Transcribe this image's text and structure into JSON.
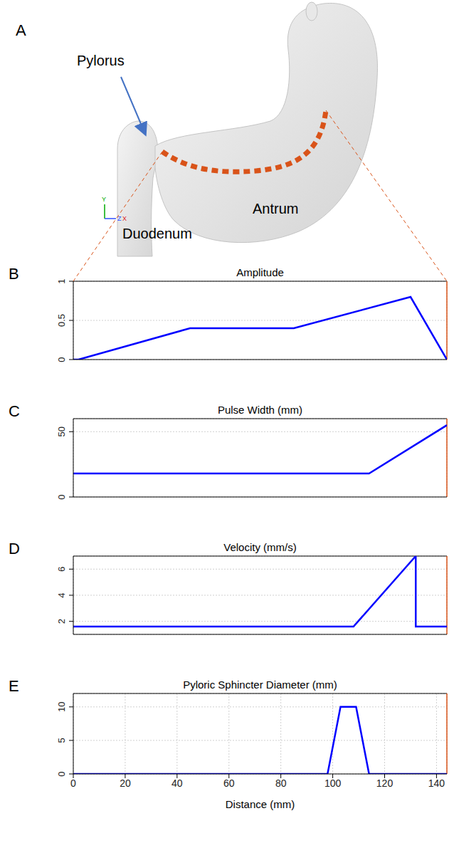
{
  "panel_a": {
    "panel": "A",
    "labels": {
      "pylorus": "Pylorus",
      "antrum": "Antrum",
      "duodenum": "Duodenum"
    },
    "axes": [
      "Y",
      "Z",
      "X"
    ]
  },
  "chart_data": [
    {
      "panel": "B",
      "type": "line",
      "title": "Amplitude",
      "x": [
        0,
        2,
        45,
        85,
        130,
        144
      ],
      "values": [
        0,
        0,
        0.4,
        0.4,
        0.8,
        0
      ],
      "color": "#0000ff",
      "xlim": [
        0,
        144
      ],
      "xticks": [
        0,
        20,
        40,
        60,
        80,
        100,
        120,
        140
      ],
      "ylim": [
        0,
        1
      ],
      "yticks": [
        0,
        0.5,
        1
      ],
      "grid": true,
      "tick_labels": "y"
    },
    {
      "panel": "C",
      "type": "line",
      "title": "Pulse Width (mm)",
      "x": [
        0,
        114,
        144
      ],
      "values": [
        18,
        18,
        55
      ],
      "color": "#0000ff",
      "xlim": [
        0,
        144
      ],
      "xticks": [
        0,
        20,
        40,
        60,
        80,
        100,
        120,
        140
      ],
      "ylim": [
        0,
        60
      ],
      "yticks": [
        0,
        50
      ],
      "grid": true,
      "tick_labels": "y"
    },
    {
      "panel": "D",
      "type": "line",
      "title": "Velocity (mm/s)",
      "x": [
        0,
        108,
        132,
        132,
        144
      ],
      "values": [
        1.6,
        1.6,
        7,
        1.6,
        1.6
      ],
      "color": "#0000ff",
      "xlim": [
        0,
        144
      ],
      "xticks": [
        0,
        20,
        40,
        60,
        80,
        100,
        120,
        140
      ],
      "ylim": [
        1,
        7
      ],
      "yticks": [
        2,
        4,
        6
      ],
      "grid": true,
      "tick_labels": "y"
    },
    {
      "panel": "E",
      "type": "line",
      "title": "Pyloric Sphincter Diameter (mm)",
      "xlabel": "Distance (mm)",
      "x": [
        0,
        98,
        103,
        109,
        114,
        144
      ],
      "values": [
        0,
        0,
        10,
        10,
        0,
        0
      ],
      "color": "#0000ff",
      "xlim": [
        0,
        144
      ],
      "xticks": [
        0,
        20,
        40,
        60,
        80,
        100,
        120,
        140
      ],
      "ylim": [
        0,
        12
      ],
      "yticks": [
        0,
        5,
        10
      ],
      "grid": true
    }
  ]
}
